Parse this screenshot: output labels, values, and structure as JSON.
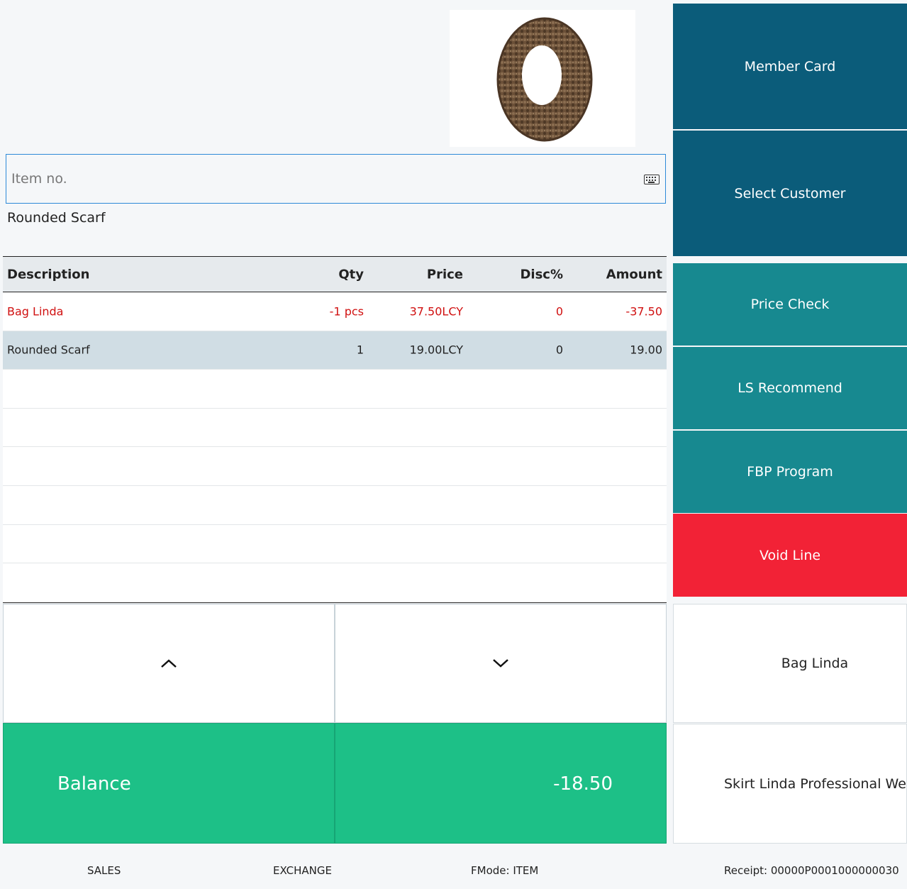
{
  "product_image": {
    "description_icon": "scarf-image"
  },
  "item_input": {
    "placeholder": "Item no.",
    "value": ""
  },
  "current_item": "Rounded Scarf",
  "table": {
    "headers": {
      "description": "Description",
      "qty": "Qty",
      "price": "Price",
      "disc": "Disc%",
      "amount": "Amount"
    },
    "rows": [
      {
        "description": "Bag Linda",
        "qty": "-1 pcs",
        "price": "37.50LCY",
        "disc": "0",
        "amount": "-37.50"
      },
      {
        "description": "Rounded Scarf",
        "qty": "1",
        "price": "19.00LCY",
        "disc": "0",
        "amount": "19.00"
      }
    ]
  },
  "balance": {
    "label": "Balance",
    "value": "-18.50"
  },
  "side_buttons": {
    "member_card": "Member Card",
    "select_customer": "Select Customer",
    "price_check": "Price Check",
    "ls_recommend": "LS Recommend",
    "fbp_program": "FBP Program",
    "void_line": "Void Line",
    "item_bag_linda": "Bag Linda",
    "item_skirt_linda": "Skirt Linda Professional Wear"
  },
  "status": {
    "mode": "SALES",
    "exchange": "EXCHANGE",
    "fmode": "FMode: ITEM",
    "receipt": "Receipt: 00000P0001000000030"
  },
  "colors": {
    "dark_blue": "#0b5c7a",
    "teal": "#178990",
    "red": "#f22236",
    "green": "#1dc087",
    "negative_text": "#d01010",
    "selected_row": "#d0dde4",
    "input_border": "#2d8ad8"
  }
}
